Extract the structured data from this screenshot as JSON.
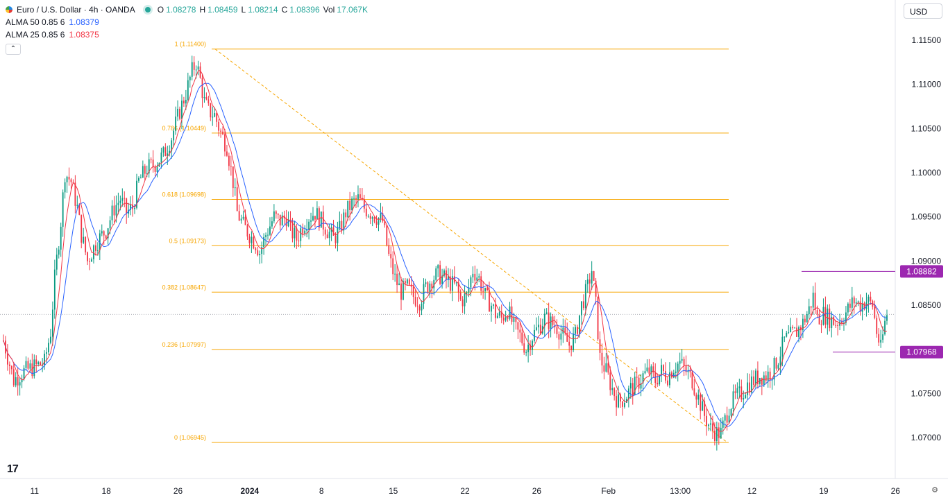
{
  "header": {
    "symbol": "Euro / U.S. Dollar · 4h · OANDA",
    "ohlc": [
      {
        "k": "O",
        "v": "1.08278"
      },
      {
        "k": "H",
        "v": "1.08459"
      },
      {
        "k": "L",
        "v": "1.08214"
      },
      {
        "k": "C",
        "v": "1.08396"
      },
      {
        "k": "Vol",
        "v": "17.067K"
      }
    ],
    "indicators": [
      {
        "name": "ALMA 50 0.85 6",
        "value": "1.08379",
        "color": "#2962ff"
      },
      {
        "name": "ALMA 25 0.85 6",
        "value": "1.08375",
        "color": "#f23645"
      }
    ],
    "collapse_icon": "chevron-up-icon"
  },
  "currency": "USD",
  "colors": {
    "up": "#089981",
    "down": "#f23645",
    "alma50": "#2962ff",
    "alma25": "#f23645",
    "fib": "#f7a600",
    "marker": "#9c27b0"
  },
  "chart_data": {
    "type": "candlestick",
    "title": "Euro / U.S. Dollar · 4h · OANDA",
    "ylim": [
      1.0675,
      1.1175
    ],
    "y_ticks": [
      "1.11500",
      "1.11000",
      "1.10500",
      "1.10000",
      "1.09500",
      "1.09000",
      "1.08500",
      "1.08000",
      "1.07500",
      "1.07000"
    ],
    "x_ticks": [
      {
        "label": "11",
        "idx": 5
      },
      {
        "label": "18",
        "idx": 40
      },
      {
        "label": "26",
        "idx": 75
      },
      {
        "label": "2024",
        "idx": 110
      },
      {
        "label": "8",
        "idx": 145
      },
      {
        "label": "15",
        "idx": 180
      },
      {
        "label": "22",
        "idx": 215
      },
      {
        "label": "26",
        "idx": 250
      },
      {
        "label": "Feb",
        "idx": 285
      },
      {
        "label": "13:00",
        "idx": 320
      },
      {
        "label": "12",
        "idx": 355
      },
      {
        "label": "19",
        "idx": 390
      },
      {
        "label": "26",
        "idx": 425
      }
    ],
    "anchors": [
      [
        0,
        1.081
      ],
      [
        5,
        1.0765
      ],
      [
        10,
        1.0775
      ],
      [
        15,
        1.078
      ],
      [
        20,
        1.0785
      ],
      [
        23,
        1.082
      ],
      [
        25,
        1.088
      ],
      [
        28,
        1.0945
      ],
      [
        30,
        1.1
      ],
      [
        33,
        1.099
      ],
      [
        36,
        1.096
      ],
      [
        38,
        1.093
      ],
      [
        41,
        1.09
      ],
      [
        45,
        1.092
      ],
      [
        50,
        1.0935
      ],
      [
        54,
        1.096
      ],
      [
        57,
        1.097
      ],
      [
        60,
        1.0955
      ],
      [
        63,
        1.096
      ],
      [
        66,
        1.099
      ],
      [
        70,
        1.1005
      ],
      [
        74,
        1.101
      ],
      [
        78,
        1.102
      ],
      [
        82,
        1.104
      ],
      [
        86,
        1.107
      ],
      [
        89,
        1.109
      ],
      [
        92,
        1.1115
      ],
      [
        94,
        1.1125
      ],
      [
        96,
        1.1105
      ],
      [
        98,
        1.108
      ],
      [
        100,
        1.107
      ],
      [
        103,
        1.1065
      ],
      [
        106,
        1.1045
      ],
      [
        109,
        1.103
      ],
      [
        112,
        1.099
      ],
      [
        114,
        1.0955
      ],
      [
        117,
        1.094
      ],
      [
        120,
        1.093
      ],
      [
        123,
        1.092
      ],
      [
        125,
        1.091
      ],
      [
        128,
        1.093
      ],
      [
        132,
        1.095
      ],
      [
        135,
        1.0945
      ],
      [
        138,
        1.095
      ],
      [
        140,
        1.0935
      ],
      [
        143,
        1.0925
      ],
      [
        146,
        1.094
      ],
      [
        149,
        1.095
      ],
      [
        152,
        1.0955
      ],
      [
        155,
        1.0945
      ],
      [
        158,
        1.0935
      ],
      [
        161,
        1.0925
      ],
      [
        164,
        1.0935
      ],
      [
        167,
        1.0955
      ],
      [
        170,
        1.0965
      ],
      [
        173,
        1.097
      ],
      [
        176,
        1.096
      ],
      [
        179,
        1.0955
      ],
      [
        182,
        1.095
      ],
      [
        185,
        1.0945
      ],
      [
        188,
        1.0905
      ],
      [
        191,
        1.088
      ],
      [
        194,
        1.0865
      ],
      [
        197,
        1.087
      ],
      [
        200,
        1.086
      ],
      [
        203,
        1.0855
      ],
      [
        206,
        1.087
      ],
      [
        209,
        1.088
      ],
      [
        212,
        1.0885
      ],
      [
        215,
        1.088
      ],
      [
        218,
        1.0875
      ],
      [
        221,
        1.087
      ],
      [
        223,
        1.0855
      ],
      [
        226,
        1.086
      ],
      [
        229,
        1.089
      ],
      [
        232,
        1.088
      ],
      [
        235,
        1.086
      ],
      [
        238,
        1.085
      ],
      [
        240,
        1.084
      ],
      [
        243,
        1.0835
      ],
      [
        246,
        1.0845
      ],
      [
        249,
        1.0825
      ],
      [
        252,
        1.0815
      ],
      [
        255,
        1.08
      ],
      [
        258,
        1.0815
      ],
      [
        261,
        1.0825
      ],
      [
        264,
        1.0835
      ],
      [
        267,
        1.083
      ],
      [
        270,
        1.0825
      ],
      [
        273,
        1.0815
      ],
      [
        276,
        1.0805
      ],
      [
        279,
        1.0815
      ],
      [
        282,
        1.085
      ],
      [
        285,
        1.087
      ],
      [
        287,
        1.089
      ],
      [
        289,
        1.085
      ],
      [
        291,
        1.079
      ],
      [
        294,
        1.0775
      ],
      [
        297,
        1.0755
      ],
      [
        300,
        1.074
      ],
      [
        303,
        1.0745
      ],
      [
        306,
        1.0755
      ],
      [
        309,
        1.076
      ],
      [
        312,
        1.077
      ],
      [
        315,
        1.0775
      ],
      [
        318,
        1.0765
      ],
      [
        321,
        1.0775
      ],
      [
        324,
        1.077
      ],
      [
        327,
        1.078
      ],
      [
        330,
        1.0785
      ],
      [
        333,
        1.0775
      ],
      [
        336,
        1.0765
      ],
      [
        339,
        1.0745
      ],
      [
        342,
        1.0725
      ],
      [
        345,
        1.071
      ],
      [
        348,
        1.0705
      ],
      [
        350,
        1.0705
      ],
      [
        352,
        1.072
      ],
      [
        354,
        1.0735
      ],
      [
        357,
        1.0745
      ],
      [
        360,
        1.075
      ],
      [
        363,
        1.076
      ],
      [
        366,
        1.0765
      ],
      [
        369,
        1.077
      ],
      [
        372,
        1.077
      ],
      [
        375,
        1.0775
      ],
      [
        378,
        1.079
      ],
      [
        381,
        1.081
      ],
      [
        384,
        1.0815
      ],
      [
        387,
        1.082
      ],
      [
        390,
        1.083
      ],
      [
        393,
        1.0845
      ],
      [
        395,
        1.086
      ],
      [
        397,
        1.0835
      ],
      [
        400,
        1.084
      ],
      [
        403,
        1.0835
      ],
      [
        406,
        1.083
      ],
      [
        409,
        1.0835
      ],
      [
        412,
        1.0845
      ],
      [
        415,
        1.0855
      ],
      [
        418,
        1.085
      ],
      [
        421,
        1.0855
      ],
      [
        424,
        1.085
      ],
      [
        426,
        1.082
      ],
      [
        428,
        1.08
      ],
      [
        430,
        1.083
      ],
      [
        431,
        1.084
      ]
    ],
    "last_index": 431,
    "fib": {
      "start_idx": 95,
      "end_idx": 350,
      "line_end_idx": 350,
      "levels": [
        {
          "label": "1 (1.11400)",
          "value": 1.114
        },
        {
          "label": "0.786 (1.10449)",
          "value": 1.10449
        },
        {
          "label": "0.618 (1.09698)",
          "value": 1.09698
        },
        {
          "label": "0.5 (1.09173)",
          "value": 1.09173
        },
        {
          "label": "0.382 (1.08647)",
          "value": 1.08647
        },
        {
          "label": "0.236 (1.07997)",
          "value": 1.07997
        },
        {
          "label": "0 (1.06945)",
          "value": 1.06945
        }
      ]
    },
    "price_markers": [
      {
        "label": "1.08882",
        "value": 1.08882,
        "start_idx": 380
      },
      {
        "label": "1.07968",
        "value": 1.07968,
        "start_idx": 396
      }
    ],
    "current_price": 1.08396
  }
}
